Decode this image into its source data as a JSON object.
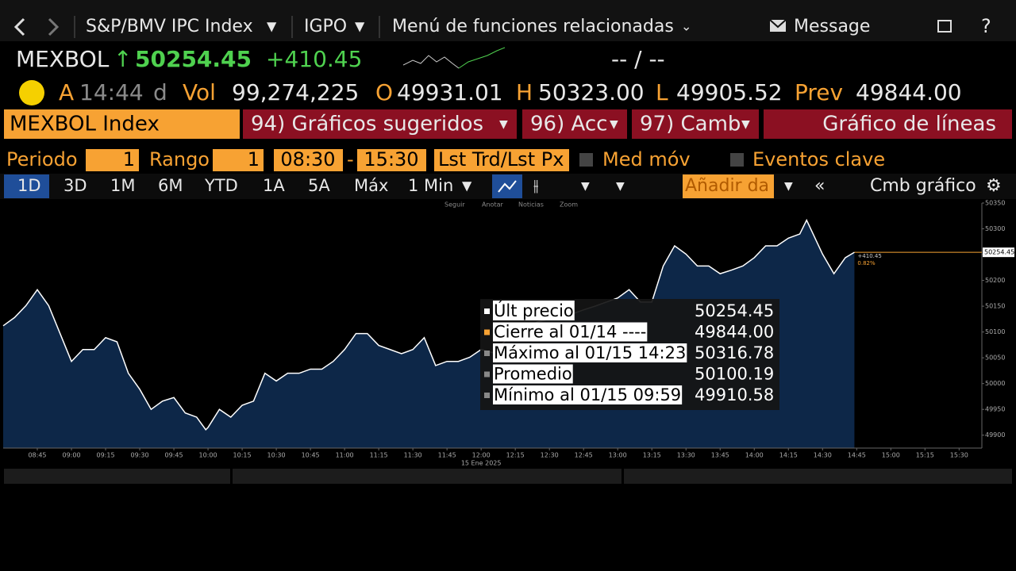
{
  "nav": {
    "security": "S&P/BMV IPC Index",
    "source": "IGPO",
    "functions": "Menú de funciones relacionadas",
    "message": "Message"
  },
  "quote": {
    "ticker": "MEXBOL",
    "last": "50254.45",
    "change": "+410.45",
    "bid_ask": "-- / --",
    "time_prefix": "A",
    "time": "14:44",
    "time_suffix": "d",
    "vol_label": "Vol",
    "vol": "99,274,225",
    "open_label": "O",
    "open": "49931.01",
    "high_label": "H",
    "high": "50323.00",
    "low_label": "L",
    "low": "49905.52",
    "prev_label": "Prev",
    "prev": "49844.00"
  },
  "menu": {
    "security": "MEXBOL Index",
    "buttons": [
      "94) Gráficos sugeridos",
      "96) Acc",
      "97) Camb"
    ],
    "title": "Gráfico de líneas"
  },
  "settings": {
    "period_label": "Periodo",
    "period": "1",
    "range_label": "Rango",
    "range": "1",
    "start": "08:30",
    "end": "15:30",
    "field": "Lst Trd/Lst Px",
    "moving_avg": "Med móv",
    "events": "Eventos clave"
  },
  "ranges": [
    "1D",
    "3D",
    "1M",
    "6M",
    "YTD",
    "1A",
    "5A",
    "Máx",
    "1 Min"
  ],
  "toolbar": {
    "add": "Añadir da",
    "edit": "Cmb gráfico"
  },
  "chart_tools": [
    "Seguir",
    "Anotar",
    "Noticias",
    "Zoom"
  ],
  "chart_data": {
    "type": "area",
    "color": "#ffffff",
    "fill": "#0d2748",
    "x": [
      "08:30",
      "08:35",
      "08:40",
      "08:45",
      "08:50",
      "08:55",
      "09:00",
      "09:05",
      "09:10",
      "09:15",
      "09:20",
      "09:25",
      "09:30",
      "09:35",
      "09:40",
      "09:45",
      "09:50",
      "09:55",
      "09:59",
      "10:00",
      "10:05",
      "10:10",
      "10:15",
      "10:20",
      "10:25",
      "10:30",
      "10:35",
      "10:40",
      "10:45",
      "10:50",
      "10:55",
      "11:00",
      "11:05",
      "11:10",
      "11:15",
      "11:20",
      "11:25",
      "11:30",
      "11:35",
      "11:40",
      "11:45",
      "11:50",
      "11:55",
      "12:00",
      "12:05",
      "12:10",
      "12:15",
      "12:20",
      "12:25",
      "12:30",
      "12:35",
      "12:40",
      "12:45",
      "12:50",
      "12:55",
      "13:00",
      "13:05",
      "13:10",
      "13:15",
      "13:20",
      "13:25",
      "13:30",
      "13:35",
      "13:40",
      "13:45",
      "13:50",
      "13:55",
      "14:00",
      "14:05",
      "14:10",
      "14:15",
      "14:20",
      "14:23",
      "14:25",
      "14:30",
      "14:35",
      "14:40",
      "14:44"
    ],
    "values": [
      50112,
      50128,
      50151,
      50182,
      50151,
      50097,
      50043,
      50066,
      50066,
      50089,
      50081,
      50020,
      49989,
      49950,
      49966,
      49973,
      49943,
      49935,
      49910.58,
      49915,
      49950,
      49935,
      49958,
      49966,
      50020,
      50005,
      50020,
      50020,
      50028,
      50028,
      50043,
      50066,
      50097,
      50097,
      50074,
      50066,
      50058,
      50066,
      50089,
      50035,
      50043,
      50043,
      50051,
      50066,
      50060,
      50080,
      50100,
      50110,
      50120,
      50125,
      50130,
      50135,
      50143,
      50150,
      50158,
      50166,
      50182,
      50158,
      50158,
      50228,
      50267,
      50251,
      50228,
      50228,
      50213,
      50220,
      50228,
      50244,
      50267,
      50267,
      50282,
      50290,
      50316.78,
      50298,
      50251,
      50213,
      50244,
      50254.45
    ],
    "xlim": [
      "08:30",
      "15:40"
    ],
    "xticks": [
      "08:45",
      "09:00",
      "09:15",
      "09:30",
      "09:45",
      "10:00",
      "10:15",
      "10:30",
      "10:45",
      "11:00",
      "11:15",
      "11:30",
      "11:45",
      "12:00",
      "12:15",
      "12:30",
      "12:45",
      "13:00",
      "13:15",
      "13:30",
      "13:45",
      "14:00",
      "14:15",
      "14:30",
      "14:45",
      "15:00",
      "15:15",
      "15:30"
    ],
    "ylim": [
      49875,
      50350
    ],
    "yticks": [
      49900,
      49950,
      50000,
      50050,
      50100,
      50150,
      50200,
      50250,
      50300,
      50350
    ],
    "date_label": "15 Ene 2025",
    "last_value": 50254.45,
    "change_label": "+410.45",
    "pct_label": "0.82%",
    "last_color": "#f7a233",
    "tooltip": [
      {
        "label": "Últ precio",
        "value": "50254.45"
      },
      {
        "label": "Cierre al 01/14 ----",
        "value": "49844.00"
      },
      {
        "label": "Máximo al 01/15 14:23",
        "value": "50316.78"
      },
      {
        "label": "Promedio",
        "value": "50100.19"
      },
      {
        "label": "Mínimo al 01/15 09:59",
        "value": "49910.58"
      }
    ]
  }
}
